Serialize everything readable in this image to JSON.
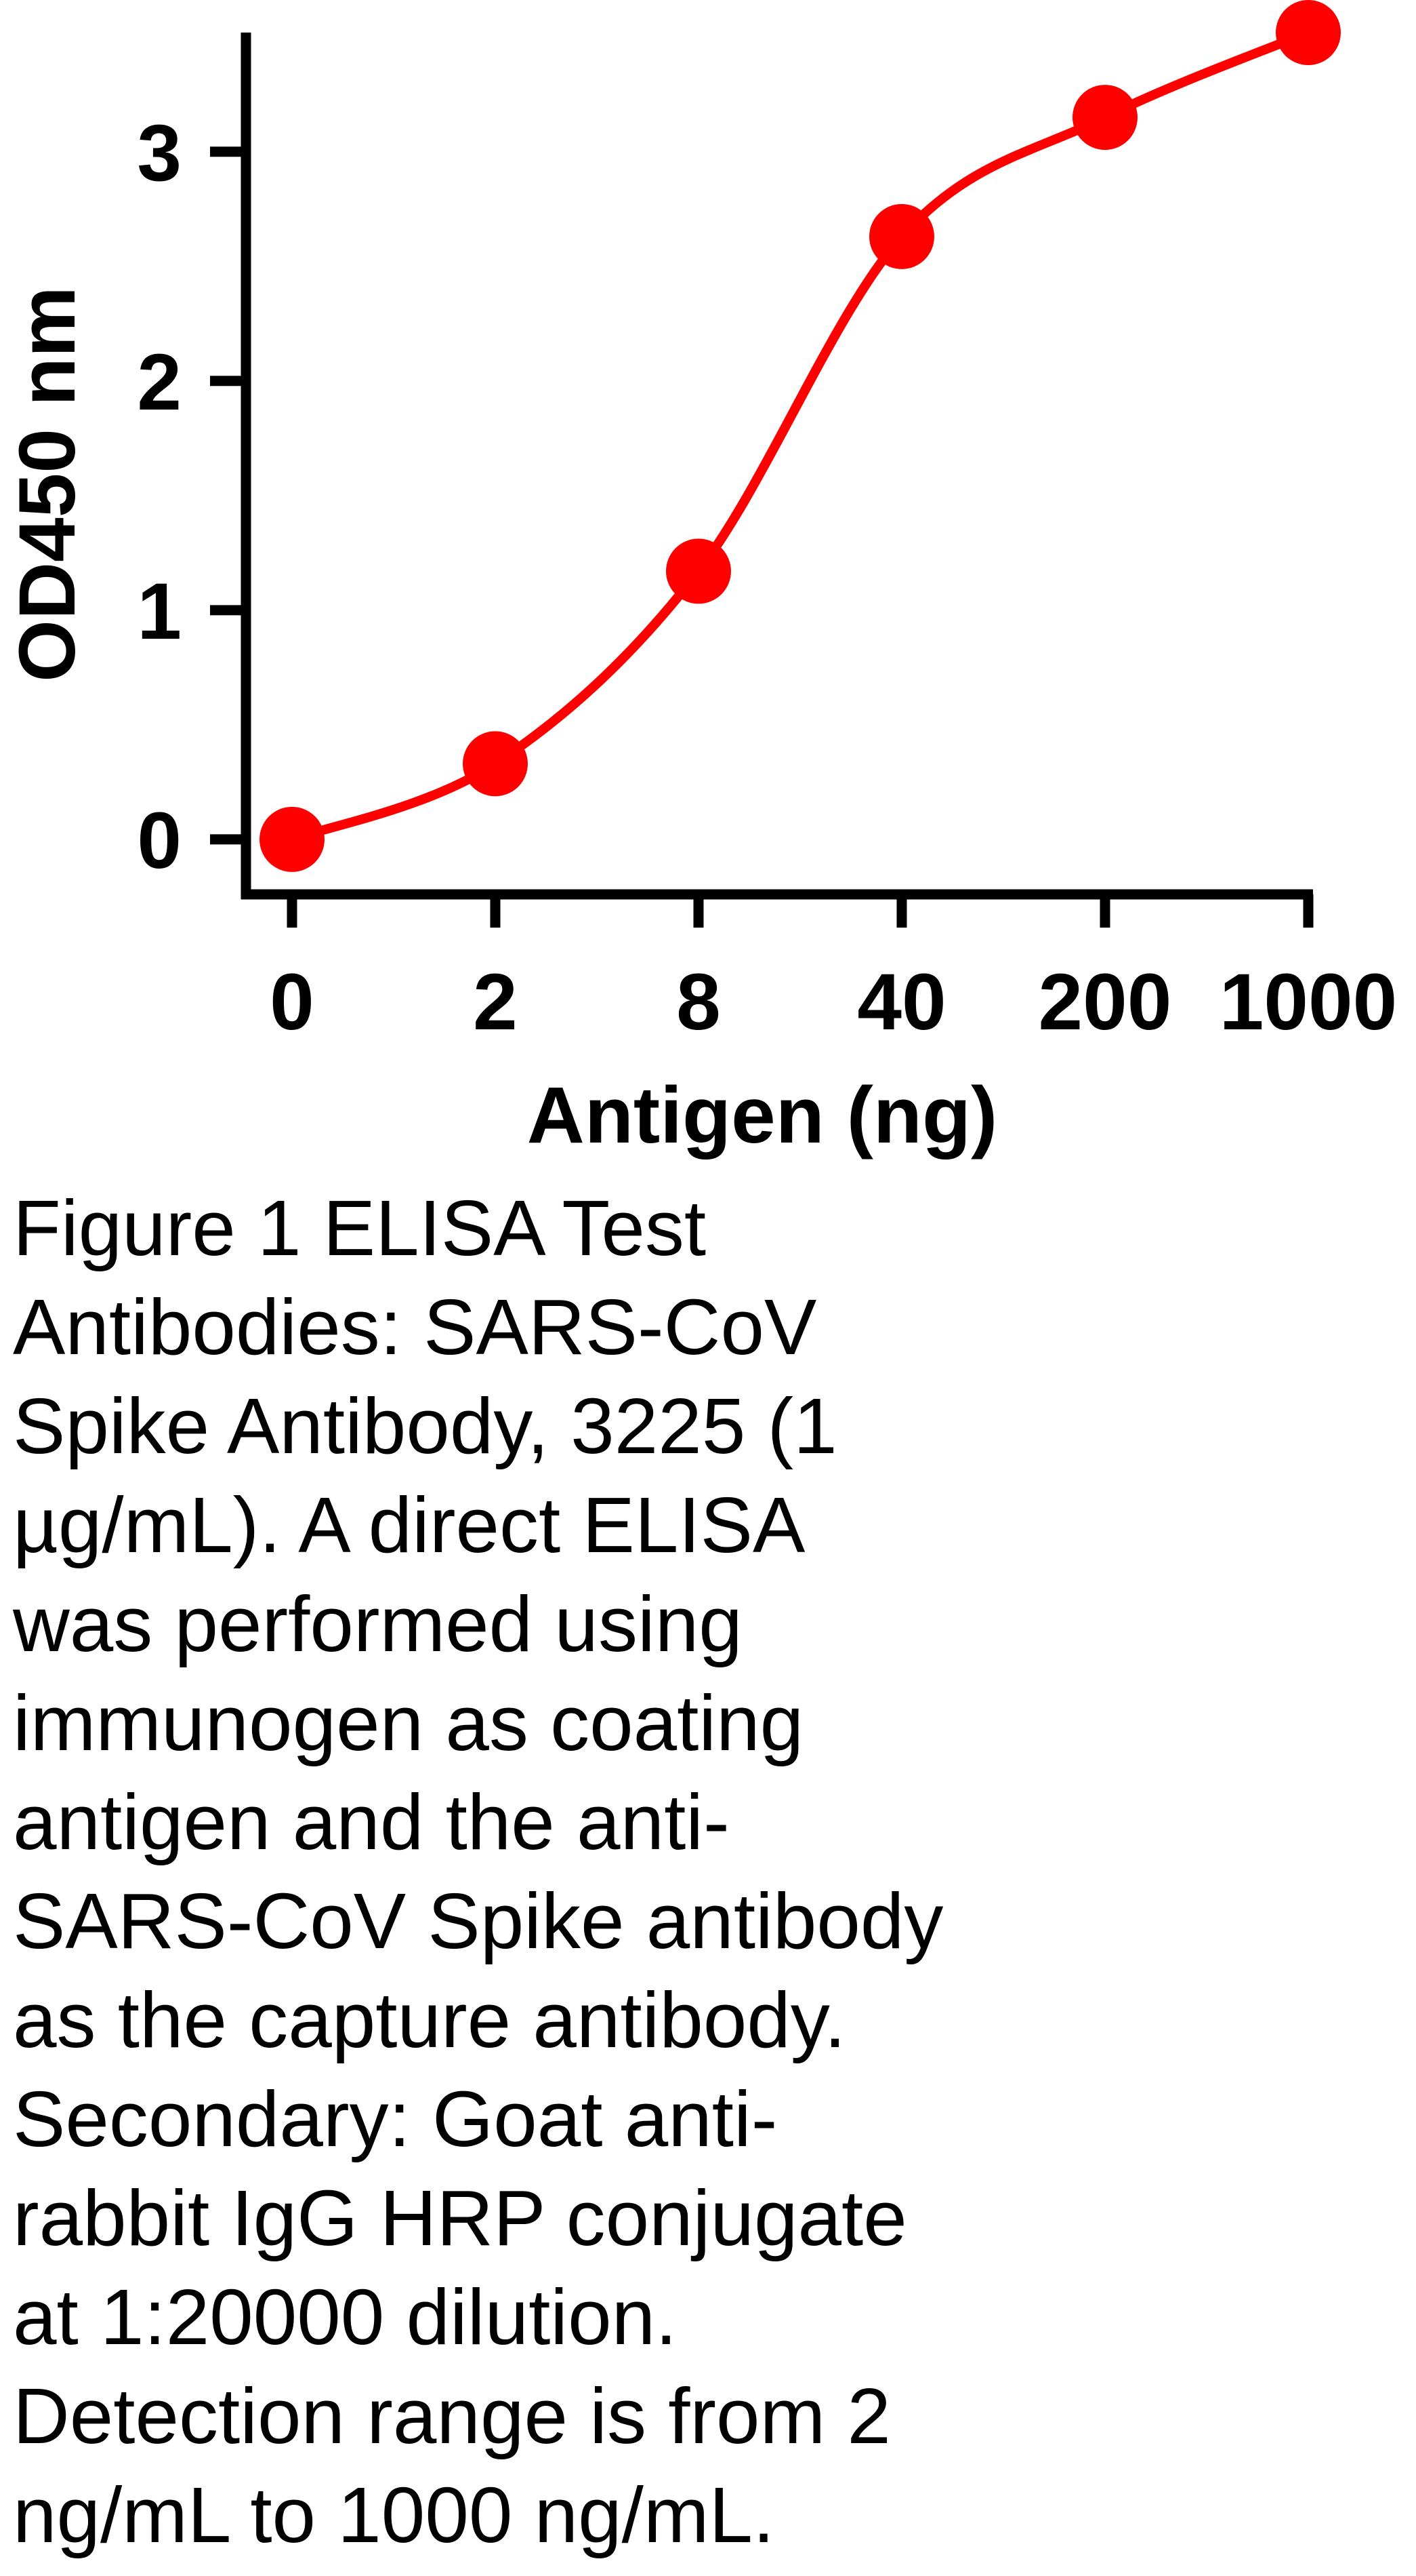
{
  "chart_data": {
    "type": "line",
    "y_label": "OD450 nm",
    "x_label": "Antigen (ng)",
    "categories": [
      "0",
      "2",
      "8",
      "40",
      "200",
      "1000"
    ],
    "values": [
      0,
      0.33,
      1.17,
      2.63,
      3.15,
      3.52
    ],
    "color": "#ff0000",
    "ylim": [
      -0.24,
      3.52
    ],
    "yticks": [
      0,
      1,
      2,
      3
    ],
    "grid": false,
    "markers": true,
    "smooth": true
  },
  "caption": [
    "Figure 1 ELISA Test",
    "Antibodies: SARS-CoV",
    "Spike Antibody, 3225 (1",
    "µg/mL). A direct ELISA",
    "was performed using",
    "immunogen as coating",
    "antigen and the anti-",
    "SARS-CoV Spike antibody",
    "as the capture antibody.",
    "Secondary: Goat anti-",
    "rabbit IgG HRP conjugate",
    "at 1:20000 dilution.",
    "Detection range is from 2",
    "ng/mL to 1000 ng/mL."
  ]
}
